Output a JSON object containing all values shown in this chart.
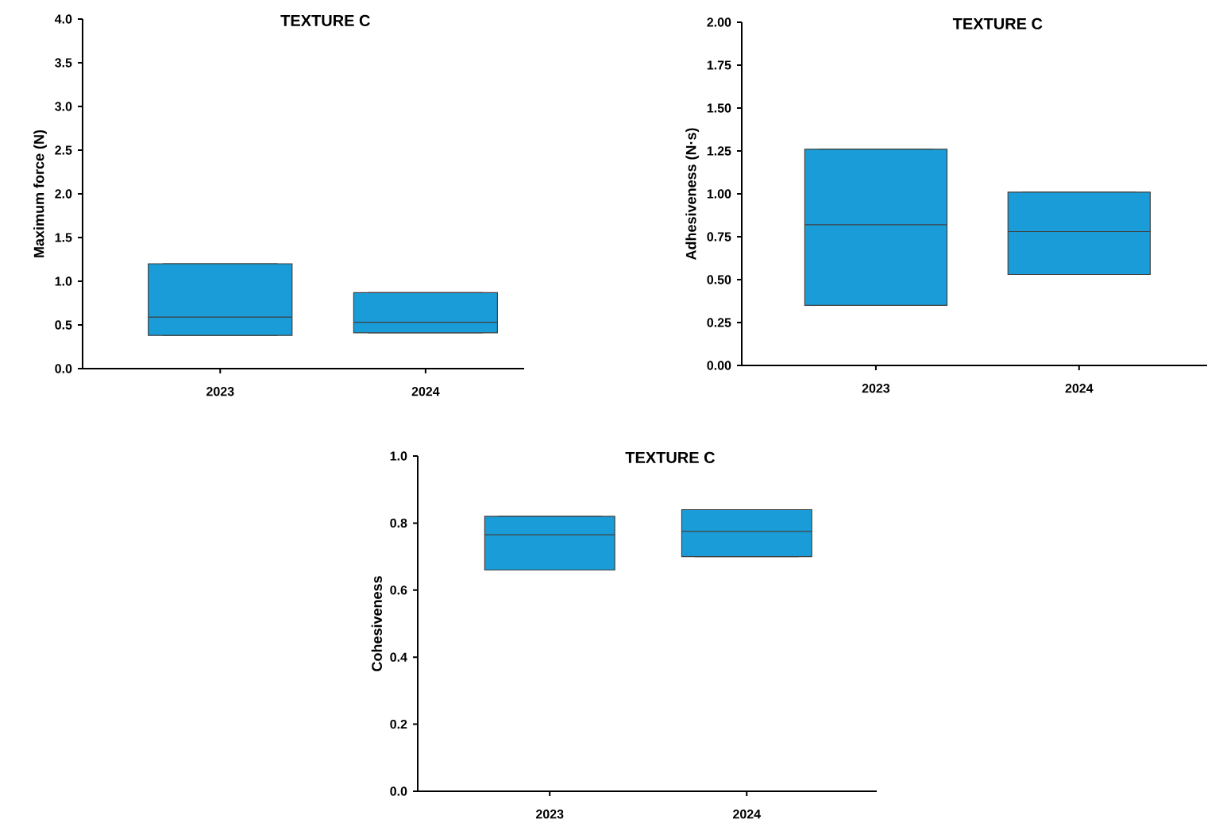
{
  "chart_data": [
    {
      "type": "box",
      "title": "TEXTURE C",
      "ylabel": "Maximum force (N)",
      "categories": [
        "2023",
        "2024"
      ],
      "color": "#1a9cd8",
      "ylim": [
        0,
        4.0
      ],
      "yticks": [
        {
          "value": 0,
          "label": "0.0"
        },
        {
          "value": 0.5,
          "label": "0.5"
        },
        {
          "value": 1,
          "label": "1.0"
        },
        {
          "value": 1.5,
          "label": "1.5"
        },
        {
          "value": 2,
          "label": "2.0"
        },
        {
          "value": 2.5,
          "label": "2.5"
        },
        {
          "value": 3,
          "label": "3.0"
        },
        {
          "value": 3.5,
          "label": "3.5"
        },
        {
          "value": 4,
          "label": "4.0"
        }
      ],
      "boxes": [
        {
          "low": 0.38,
          "q1": 0.38,
          "median": 0.59,
          "q3": 1.2,
          "high": 1.2
        },
        {
          "low": 0.41,
          "q1": 0.41,
          "median": 0.53,
          "q3": 0.87,
          "high": 0.87
        }
      ]
    },
    {
      "type": "box",
      "title": "TEXTURE C",
      "ylabel": "Adhesiveness (N·s)",
      "categories": [
        "2023",
        "2024"
      ],
      "color": "#1a9cd8",
      "ylim": [
        0,
        2.0
      ],
      "yticks": [
        {
          "value": 0,
          "label": "0.00"
        },
        {
          "value": 0.25,
          "label": "0.25"
        },
        {
          "value": 0.5,
          "label": "0.50"
        },
        {
          "value": 0.75,
          "label": "0.75"
        },
        {
          "value": 1,
          "label": "1.00"
        },
        {
          "value": 1.25,
          "label": "1.25"
        },
        {
          "value": 1.5,
          "label": "1.50"
        },
        {
          "value": 1.75,
          "label": "1.75"
        },
        {
          "value": 2,
          "label": "2.00"
        }
      ],
      "boxes": [
        {
          "low": 0.35,
          "q1": 0.35,
          "median": 0.82,
          "q3": 1.26,
          "high": 1.26
        },
        {
          "low": 0.53,
          "q1": 0.53,
          "median": 0.78,
          "q3": 1.01,
          "high": 1.01
        }
      ]
    },
    {
      "type": "box",
      "title": "TEXTURE C",
      "ylabel": "Cohesiveness",
      "categories": [
        "2023",
        "2024"
      ],
      "color": "#1a9cd8",
      "ylim": [
        0,
        1.0
      ],
      "yticks": [
        {
          "value": 0,
          "label": "0.0"
        },
        {
          "value": 0.2,
          "label": "0.2"
        },
        {
          "value": 0.4,
          "label": "0.4"
        },
        {
          "value": 0.6,
          "label": "0.6"
        },
        {
          "value": 0.8,
          "label": "0.8"
        },
        {
          "value": 1,
          "label": "1.0"
        }
      ],
      "boxes": [
        {
          "low": 0.66,
          "q1": 0.66,
          "median": 0.765,
          "q3": 0.82,
          "high": 0.82
        },
        {
          "low": 0.7,
          "q1": 0.7,
          "median": 0.775,
          "q3": 0.84,
          "high": 0.84
        }
      ]
    }
  ]
}
